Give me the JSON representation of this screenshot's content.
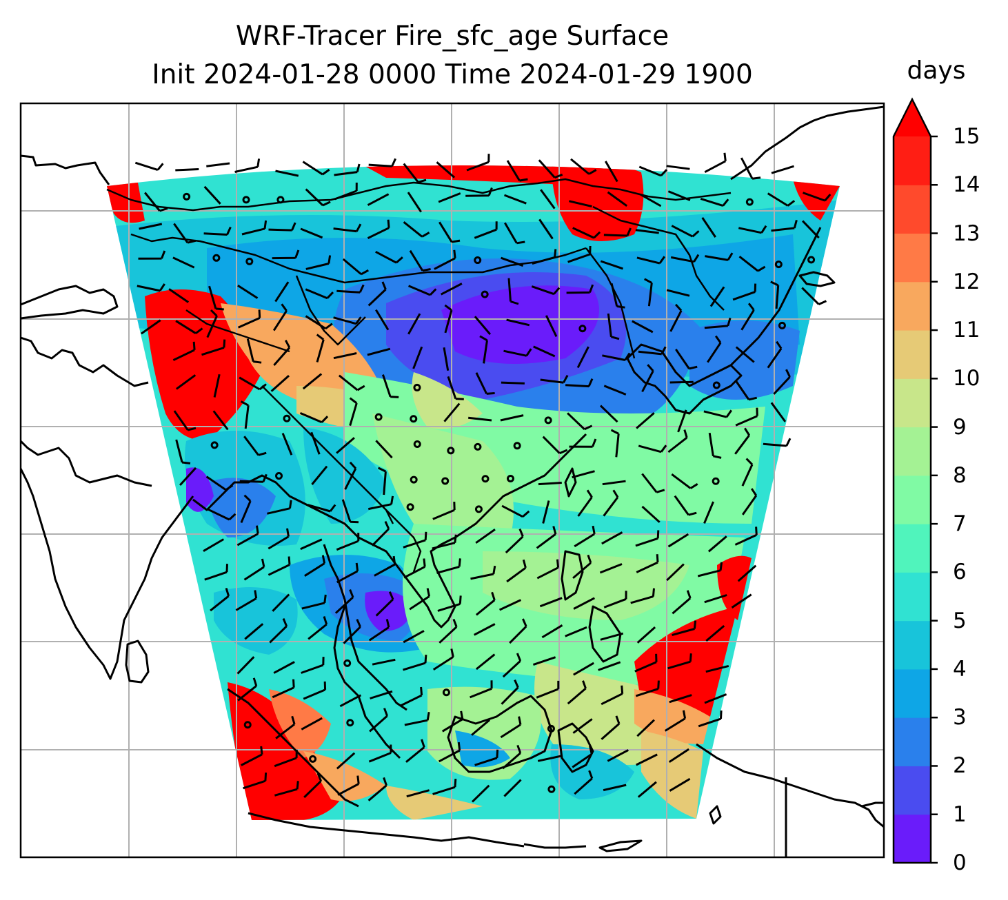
{
  "title": {
    "line1": "WRF-Tracer Fire_sfc_age Surface",
    "line2": "Init 2024-01-28 0000 Time 2024-01-29 1900"
  },
  "colorbar": {
    "unit_label": "days",
    "ticks": [
      "0",
      "1",
      "2",
      "3",
      "4",
      "5",
      "6",
      "7",
      "8",
      "9",
      "10",
      "11",
      "12",
      "13",
      "14",
      "15"
    ],
    "levels": [
      0,
      1,
      2,
      3,
      4,
      5,
      6,
      7,
      8,
      9,
      10,
      11,
      12,
      13,
      14,
      15
    ],
    "colors": [
      "#6a1cfa",
      "#4a4cf0",
      "#2a80ec",
      "#0ea6e6",
      "#18c4da",
      "#30e2d2",
      "#50f4bc",
      "#80faa4",
      "#a4f294",
      "#c8e68a",
      "#e6ca76",
      "#f8a85e",
      "#ff7a46",
      "#ff4a2c",
      "#ff1e14"
    ],
    "extend": "max",
    "extend_color": "#ff0000"
  },
  "map": {
    "projection": "Mercator",
    "gridlines": true,
    "features": [
      "coastlines",
      "country borders",
      "wind barbs",
      "gridlines"
    ],
    "field": "Fire_sfc_age"
  }
}
